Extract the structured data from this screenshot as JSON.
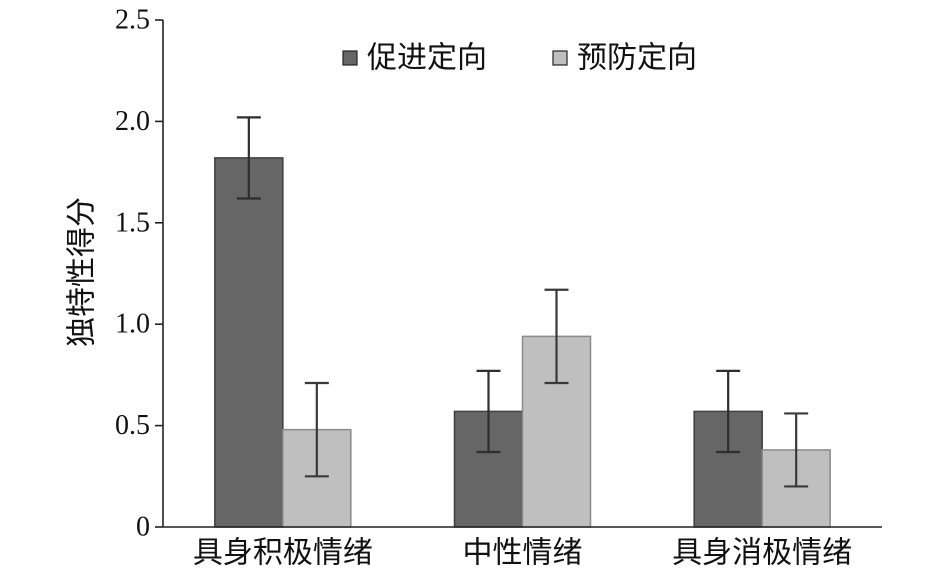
{
  "chart_data": {
    "type": "bar",
    "categories": [
      "具身积极情绪",
      "中性情绪",
      "具身消极情绪"
    ],
    "series": [
      {
        "name": "促进定向",
        "values": [
          1.82,
          0.57,
          0.57
        ],
        "errors": [
          0.2,
          0.2,
          0.2
        ],
        "color": "#666666",
        "edge_color": "#3f3f3f",
        "error_color": "#2e2e2e"
      },
      {
        "name": "预防定向",
        "values": [
          0.48,
          0.94,
          0.38
        ],
        "errors": [
          0.23,
          0.23,
          0.18
        ],
        "color": "#bfbfbf",
        "edge_color": "#8a8a8a",
        "error_color": "#3a3a3a"
      }
    ],
    "ylabel": "独特性得分",
    "ylim": [
      0,
      2.5
    ],
    "yticks": [
      0,
      0.5,
      1.0,
      1.5,
      2.0,
      2.5
    ],
    "ytick_labels": [
      "0",
      "0.5",
      "1.0",
      "1.5",
      "2.0",
      "2.5"
    ],
    "grid": false,
    "legend": "top-center",
    "axis_color": "#222222"
  }
}
